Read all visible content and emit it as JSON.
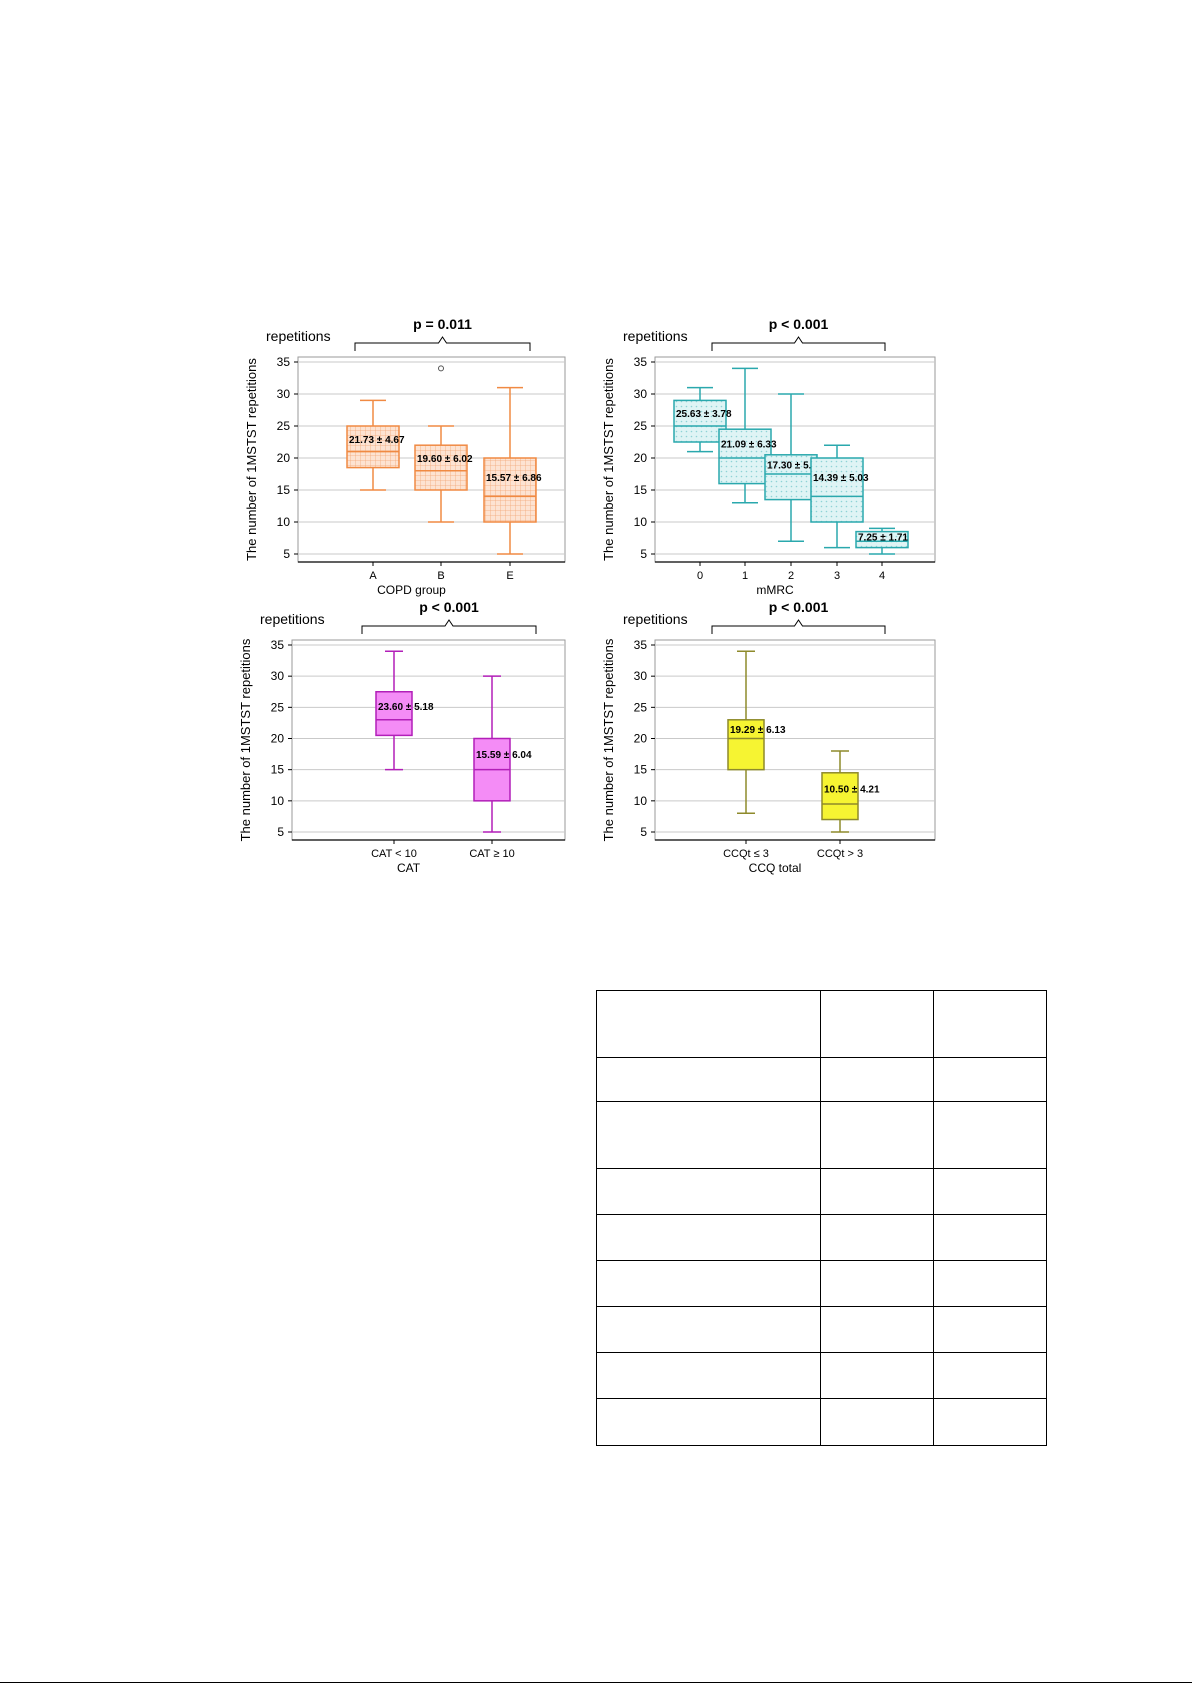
{
  "figure": {
    "y_axis_label": "The number of 1MSTST repetitions",
    "unit_label": "repetitions",
    "ticks": [
      5,
      10,
      15,
      20,
      25,
      30,
      35
    ],
    "panels": [
      {
        "id": "copd",
        "p_text": "p = 0.011",
        "color": "#f08a43",
        "fill": "#fde3d2",
        "pattern": "grid",
        "xlabel": "COPD group",
        "chart_data": {
          "type": "box",
          "xlabel": "COPD group",
          "ylabel": "The number of 1MSTST repetitions",
          "ylim": [
            5,
            35
          ],
          "grid": true,
          "categories": [
            "A",
            "B",
            "E"
          ],
          "boxes": [
            {
              "category": "A",
              "min": 15,
              "q1": 18.5,
              "median": 21,
              "q3": 25,
              "max": 29,
              "label": "21.73 ± 4.67"
            },
            {
              "category": "B",
              "min": 10,
              "q1": 15,
              "median": 18,
              "q3": 22,
              "max": 25,
              "outliers": [
                34
              ],
              "label": "19.60 ± 6.02"
            },
            {
              "category": "E",
              "min": 5,
              "q1": 10,
              "median": 14,
              "q3": 20,
              "max": 31,
              "label": "15.57 ± 6.86"
            }
          ]
        }
      },
      {
        "id": "mmrc",
        "p_text": "p < 0.001",
        "color": "#2aa8ad",
        "fill": "#d8f2f3",
        "pattern": "dots",
        "xlabel": "mMRC",
        "chart_data": {
          "type": "box",
          "xlabel": "mMRC",
          "ylabel": "The number of 1MSTST repetitions",
          "ylim": [
            5,
            35
          ],
          "grid": true,
          "categories": [
            "0",
            "1",
            "2",
            "3",
            "4"
          ],
          "boxes": [
            {
              "category": "0",
              "min": 21,
              "q1": 22.5,
              "median": 25,
              "q3": 29,
              "max": 31,
              "label": "25.63 ± 3.78"
            },
            {
              "category": "1",
              "min": 13,
              "q1": 16,
              "median": 20,
              "q3": 24.5,
              "max": 34,
              "label": "21.09 ± 6.33"
            },
            {
              "category": "2",
              "min": 7,
              "q1": 13.5,
              "median": 17.5,
              "q3": 20.5,
              "max": 30,
              "label": "17.30 ± 5.33"
            },
            {
              "category": "3",
              "min": 6,
              "q1": 10,
              "median": 14,
              "q3": 20,
              "max": 22,
              "label": "14.39 ± 5.03"
            },
            {
              "category": "4",
              "min": 5,
              "q1": 6,
              "median": 7,
              "q3": 8.5,
              "max": 9,
              "label": "7.25 ± 1.71"
            }
          ]
        }
      },
      {
        "id": "cat",
        "p_text": "p < 0.001",
        "color": "#b21fb8",
        "fill": "#f48cf6",
        "pattern": "none",
        "xlabel": "CAT",
        "chart_data": {
          "type": "box",
          "xlabel": "CAT",
          "ylabel": "The number of 1MSTST repetitions",
          "ylim": [
            5,
            35
          ],
          "grid": true,
          "categories": [
            "CAT < 10",
            "CAT ≥ 10"
          ],
          "boxes": [
            {
              "category": "CAT < 10",
              "min": 15,
              "q1": 20.5,
              "median": 23,
              "q3": 27.5,
              "max": 34,
              "label": "23.60 ± 5.18"
            },
            {
              "category": "CAT ≥ 10",
              "min": 5,
              "q1": 10,
              "median": 15,
              "q3": 20,
              "max": 30,
              "label": "15.59 ± 6.04"
            }
          ]
        }
      },
      {
        "id": "ccq",
        "p_text": "p < 0.001",
        "color": "#8e8a2b",
        "fill": "#f6f432",
        "pattern": "none",
        "xlabel": "CCQ total",
        "chart_data": {
          "type": "box",
          "xlabel": "CCQ total",
          "ylabel": "The number of 1MSTST repetitions",
          "ylim": [
            5,
            35
          ],
          "grid": true,
          "categories": [
            "CCQt ≤ 3",
            "CCQt > 3"
          ],
          "boxes": [
            {
              "category": "CCQt ≤ 3",
              "min": 8,
              "q1": 15,
              "median": 20,
              "q3": 23,
              "max": 34,
              "label": "19.29 ± 6.13"
            },
            {
              "category": "CCQt > 3",
              "min": 5,
              "q1": 7,
              "median": 9.5,
              "q3": 14.5,
              "max": 18,
              "label": "10.50 ± 4.21"
            }
          ]
        }
      }
    ]
  },
  "table": {
    "rows": 9,
    "cols": 3
  }
}
